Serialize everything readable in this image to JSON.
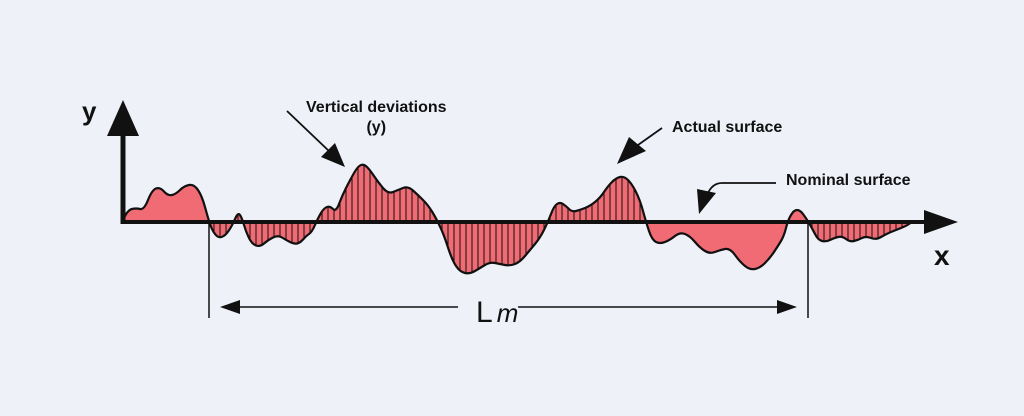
{
  "labels": {
    "y_axis": "y",
    "x_axis": "x",
    "vertical_deviations": "Vertical deviations",
    "vertical_deviations_sub": "(y)",
    "actual_surface": "Actual surface",
    "nominal_surface": "Nominal surface",
    "length_main": "L",
    "length_sub": "m"
  },
  "colors": {
    "background": "#eef2f8",
    "fill": "#f06b73",
    "stroke": "#111111"
  }
}
